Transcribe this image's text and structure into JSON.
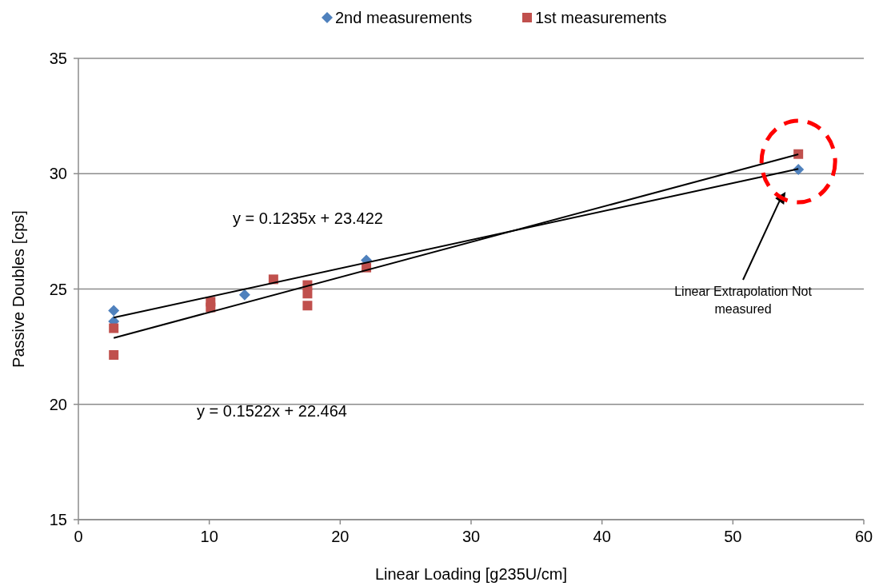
{
  "chart_data": {
    "type": "scatter",
    "xlabel": "Linear Loading [g235U/cm]",
    "ylabel": "Passive Doubles [cps]",
    "xlim": [
      0,
      60
    ],
    "ylim": [
      15,
      35
    ],
    "xticks": [
      0,
      10,
      20,
      30,
      40,
      50,
      60
    ],
    "yticks": [
      15,
      20,
      25,
      30,
      35
    ],
    "grid": "y",
    "legend": "top",
    "series": [
      {
        "name": "2nd measurements",
        "color": "#4f81bd",
        "marker": "diamond",
        "x": [
          2.7,
          2.7,
          12.7,
          22,
          55
        ],
        "values": [
          24.06,
          23.6,
          24.75,
          26.25,
          30.18
        ]
      },
      {
        "name": "1st measurements",
        "color": "#c0504d",
        "marker": "square",
        "x": [
          2.7,
          2.7,
          10.1,
          10.1,
          14.9,
          17.5,
          17.5,
          17.5,
          22,
          55
        ],
        "values": [
          23.3,
          22.14,
          24.45,
          24.2,
          25.42,
          25.17,
          24.8,
          24.28,
          25.93,
          30.85
        ]
      },
      {
        "type": "line",
        "color": "#000000",
        "x": [
          2.7,
          55
        ],
        "values": [
          23.76,
          30.21
        ]
      },
      {
        "type": "line",
        "color": "#000000",
        "x": [
          2.7,
          55
        ],
        "values": [
          22.88,
          30.84
        ]
      }
    ],
    "annotations": [
      "y = 0.1235x + 23.422",
      "y = 0.1522x + 22.464",
      "Linear Extrapolation Not measured"
    ]
  }
}
